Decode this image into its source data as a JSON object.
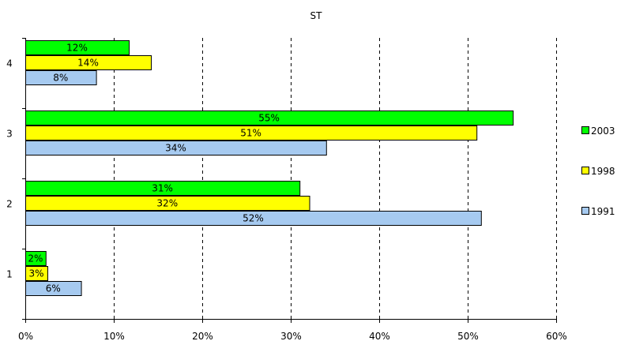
{
  "chart_data": {
    "type": "bar",
    "orientation": "horizontal",
    "title": "ST",
    "categories": [
      "1",
      "2",
      "3",
      "4"
    ],
    "series": [
      {
        "name": "1991",
        "color": "#a6caf0",
        "values": [
          6.3,
          51.5,
          34,
          8
        ],
        "labels": [
          "6%",
          "52%",
          "34%",
          "8%"
        ]
      },
      {
        "name": "1998",
        "color": "#ffff00",
        "values": [
          2.5,
          32.1,
          51,
          14.2
        ],
        "labels": [
          "3%",
          "32%",
          "51%",
          "14%"
        ]
      },
      {
        "name": "2003",
        "color": "#00ff00",
        "values": [
          2.3,
          31,
          55.1,
          11.7
        ],
        "labels": [
          "2%",
          "31%",
          "55%",
          "12%"
        ]
      }
    ],
    "x_ticks": [
      "0%",
      "10%",
      "20%",
      "30%",
      "40%",
      "50%",
      "60%"
    ],
    "xlim": [
      0,
      60
    ],
    "grid": "vertical dashed",
    "legend_order": [
      "2003",
      "1998",
      "1991"
    ],
    "legend_position": "right"
  }
}
